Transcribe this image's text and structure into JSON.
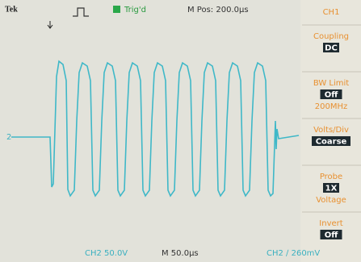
{
  "header": {
    "brand": "Tek",
    "trigger_status": "Trig'd",
    "position": "M Pos: 200.0µs"
  },
  "channel_marker": "2",
  "menu": {
    "channel": "CH1",
    "items": [
      {
        "label": "Coupling",
        "value": "DC"
      },
      {
        "label": "BW Limit",
        "value": "Off",
        "detail": "200MHz"
      },
      {
        "label": "Volts/Div",
        "value": "Coarse"
      },
      {
        "label": "Probe",
        "value": "1X",
        "detail": "Voltage"
      },
      {
        "label": "Invert",
        "value": "Off"
      }
    ]
  },
  "footer": {
    "channel_scale": "CH2  50.0V",
    "timebase": "M 50.0µs",
    "trigger": "CH2 ∕ 260mV"
  }
}
